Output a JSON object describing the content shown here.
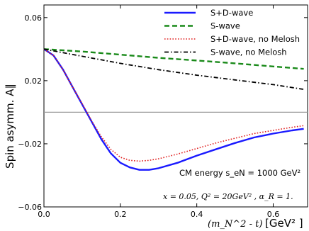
{
  "chart_data": {
    "type": "line",
    "title": "",
    "xlabel_math": "(m_N^2 - t)",
    "xlabel_unit": "[GeV² ]",
    "ylabel": "Spin asymm. A∥",
    "xlim": [
      0.0,
      0.69
    ],
    "ylim": [
      -0.06,
      0.068
    ],
    "xticks": [
      0.0,
      0.2,
      0.4,
      0.6
    ],
    "xtick_labels": [
      "0.0",
      "0.2",
      "0.4",
      "0.6"
    ],
    "yticks": [
      -0.06,
      -0.02,
      0.02,
      0.06
    ],
    "ytick_labels": [
      "−0.06",
      "−0.02",
      "0.02",
      "0.06"
    ],
    "reference_line_y": 0.0,
    "legend_position": "top-right",
    "annotations": {
      "cm_energy": "CM energy s_eN = 1000 GeV²",
      "params": "x = 0.05, Q² = 20GeV² , α_R = 1."
    },
    "series": [
      {
        "name": "S+D-wave",
        "color": "#1a1aff",
        "style": "solid",
        "x": [
          0.0,
          0.025,
          0.05,
          0.075,
          0.1,
          0.125,
          0.15,
          0.175,
          0.2,
          0.225,
          0.25,
          0.275,
          0.3,
          0.35,
          0.4,
          0.45,
          0.5,
          0.55,
          0.6,
          0.65,
          0.68
        ],
        "y": [
          0.04,
          0.036,
          0.027,
          0.016,
          0.005,
          -0.006,
          -0.017,
          -0.026,
          -0.032,
          -0.035,
          -0.0365,
          -0.0365,
          -0.0355,
          -0.032,
          -0.0275,
          -0.0235,
          -0.0195,
          -0.016,
          -0.0135,
          -0.0115,
          -0.0105
        ]
      },
      {
        "name": "S-wave",
        "color": "#1a8a1a",
        "style": "dashed",
        "x": [
          0.0,
          0.1,
          0.2,
          0.3,
          0.4,
          0.5,
          0.6,
          0.68
        ],
        "y": [
          0.04,
          0.0385,
          0.0365,
          0.0345,
          0.0328,
          0.031,
          0.029,
          0.0275
        ]
      },
      {
        "name": "S+D-wave, no Melosh",
        "color": "#e02020",
        "style": "dotted",
        "x": [
          0.0,
          0.025,
          0.05,
          0.075,
          0.1,
          0.125,
          0.15,
          0.175,
          0.2,
          0.225,
          0.25,
          0.275,
          0.3,
          0.35,
          0.4,
          0.45,
          0.5,
          0.55,
          0.6,
          0.65,
          0.68
        ],
        "y": [
          0.04,
          0.036,
          0.027,
          0.016,
          0.0055,
          -0.0055,
          -0.0155,
          -0.0235,
          -0.0285,
          -0.0305,
          -0.031,
          -0.0305,
          -0.0295,
          -0.0265,
          -0.023,
          -0.0195,
          -0.0165,
          -0.0135,
          -0.0115,
          -0.0095,
          -0.0085
        ]
      },
      {
        "name": "S-wave, no Melosh",
        "color": "#000000",
        "style": "dashdot",
        "x": [
          0.0,
          0.1,
          0.2,
          0.3,
          0.4,
          0.5,
          0.6,
          0.68
        ],
        "y": [
          0.04,
          0.0355,
          0.031,
          0.027,
          0.0235,
          0.0205,
          0.0175,
          0.0145
        ]
      }
    ]
  }
}
